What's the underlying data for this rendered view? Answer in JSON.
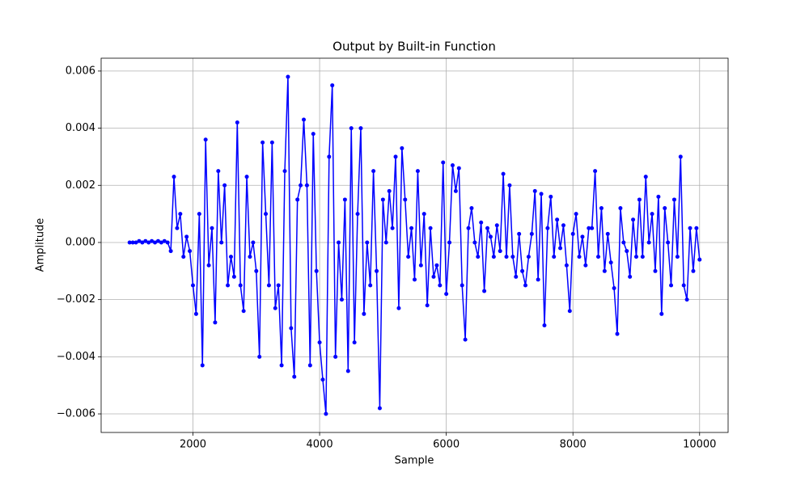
{
  "chart_data": {
    "type": "line",
    "title": "Output by Built-in Function",
    "xlabel": "Sample",
    "ylabel": "Amplitude",
    "color": "blue",
    "marker": "o",
    "grid": true,
    "xlim": [
      550,
      10450
    ],
    "xticks": [
      2000,
      4000,
      6000,
      8000,
      10000
    ],
    "ylim": [
      -0.00665,
      0.00645
    ],
    "yticks": [
      {
        "value": -0.006,
        "label": "−0.006"
      },
      {
        "value": -0.004,
        "label": "−0.004"
      },
      {
        "value": -0.002,
        "label": "−0.002"
      },
      {
        "value": 0,
        "label": "0.000"
      },
      {
        "value": 0.002,
        "label": "0.002"
      },
      {
        "value": 0.004,
        "label": "0.004"
      },
      {
        "value": 0.006,
        "label": "0.006"
      }
    ],
    "x": [
      1000,
      1050,
      1100,
      1150,
      1200,
      1250,
      1300,
      1350,
      1400,
      1450,
      1500,
      1550,
      1600,
      1650,
      1700,
      1750,
      1800,
      1850,
      1900,
      1950,
      2000,
      2050,
      2100,
      2150,
      2200,
      2250,
      2300,
      2350,
      2400,
      2450,
      2500,
      2550,
      2600,
      2650,
      2700,
      2750,
      2800,
      2850,
      2900,
      2950,
      3000,
      3050,
      3100,
      3150,
      3200,
      3250,
      3300,
      3350,
      3400,
      3450,
      3500,
      3550,
      3600,
      3650,
      3700,
      3750,
      3800,
      3850,
      3900,
      3950,
      4000,
      4050,
      4100,
      4150,
      4200,
      4250,
      4300,
      4350,
      4400,
      4450,
      4500,
      4550,
      4600,
      4650,
      4700,
      4750,
      4800,
      4850,
      4900,
      4950,
      5000,
      5050,
      5100,
      5150,
      5200,
      5250,
      5300,
      5350,
      5400,
      5450,
      5500,
      5550,
      5600,
      5650,
      5700,
      5750,
      5800,
      5850,
      5900,
      5950,
      6000,
      6050,
      6100,
      6150,
      6200,
      6250,
      6300,
      6350,
      6400,
      6450,
      6500,
      6550,
      6600,
      6650,
      6700,
      6750,
      6800,
      6850,
      6900,
      6950,
      7000,
      7050,
      7100,
      7150,
      7200,
      7250,
      7300,
      7350,
      7400,
      7450,
      7500,
      7550,
      7600,
      7650,
      7700,
      7750,
      7800,
      7850,
      7900,
      7950,
      8000,
      8050,
      8100,
      8150,
      8200,
      8250,
      8300,
      8350,
      8400,
      8450,
      8500,
      8550,
      8600,
      8650,
      8700,
      8750,
      8800,
      8850,
      8900,
      8950,
      9000,
      9050,
      9100,
      9150,
      9200,
      9250,
      9300,
      9350,
      9400,
      9450,
      9500,
      9550,
      9600,
      9650,
      9700,
      9750,
      9800,
      9850,
      9900,
      9950,
      10000
    ],
    "values": [
      0,
      0,
      0,
      5e-05,
      0,
      5e-05,
      0,
      5e-05,
      0,
      5e-05,
      0,
      5e-05,
      0,
      -0.0003,
      0.0023,
      0.0005,
      0.001,
      -0.0005,
      0.0002,
      -0.0003,
      -0.0015,
      -0.0025,
      0.001,
      -0.0043,
      0.0036,
      -0.0008,
      0.0005,
      -0.0028,
      0.0025,
      0,
      0.002,
      -0.0015,
      -0.0005,
      -0.0012,
      0.0042,
      -0.0015,
      -0.0024,
      0.0023,
      -0.0005,
      0,
      -0.001,
      -0.004,
      0.0035,
      0.001,
      -0.0015,
      0.0035,
      -0.0023,
      -0.0015,
      -0.0043,
      0.0025,
      0.0058,
      -0.003,
      -0.0047,
      0.0015,
      0.002,
      0.0043,
      0.002,
      -0.0043,
      0.0038,
      -0.001,
      -0.0035,
      -0.0048,
      -0.006,
      0.003,
      0.0055,
      -0.004,
      0,
      -0.002,
      0.0015,
      -0.0045,
      0.004,
      -0.0035,
      0.001,
      0.004,
      -0.0025,
      0,
      -0.0015,
      0.0025,
      -0.001,
      -0.0058,
      0.0015,
      0,
      0.0018,
      0.0005,
      0.003,
      -0.0023,
      0.0033,
      0.0015,
      -0.0005,
      0.0005,
      -0.0013,
      0.0025,
      -0.0008,
      0.001,
      -0.0022,
      0.0005,
      -0.0012,
      -0.0008,
      -0.0015,
      0.0028,
      -0.0018,
      0,
      0.0027,
      0.0018,
      0.0026,
      -0.0015,
      -0.0034,
      0.0005,
      0.0012,
      0,
      -0.0005,
      0.0007,
      -0.0017,
      0.0005,
      0.0002,
      -0.0005,
      0.0006,
      -0.0003,
      0.0024,
      -0.0005,
      0.002,
      -0.0005,
      -0.0012,
      0.0003,
      -0.001,
      -0.0015,
      -0.0005,
      0.0003,
      0.0018,
      -0.0013,
      0.0017,
      -0.0029,
      0.0005,
      0.0016,
      -0.0005,
      0.0008,
      -0.0002,
      0.0006,
      -0.0008,
      -0.0024,
      0.0003,
      0.001,
      -0.0005,
      0.0002,
      -0.0008,
      0.0005,
      0.0005,
      0.0025,
      -0.0005,
      0.0012,
      -0.001,
      0.0003,
      -0.0007,
      -0.0016,
      -0.0032,
      0.0012,
      0,
      -0.0003,
      -0.0012,
      0.0008,
      -0.0005,
      0.0015,
      -0.0005,
      0.0023,
      0,
      0.001,
      -0.001,
      0.0016,
      -0.0025,
      0.0012,
      0,
      -0.0015,
      0.0015,
      -0.0005,
      0.003,
      -0.0015,
      -0.002,
      0.0005,
      -0.001,
      0.0005,
      -0.0006
    ]
  }
}
